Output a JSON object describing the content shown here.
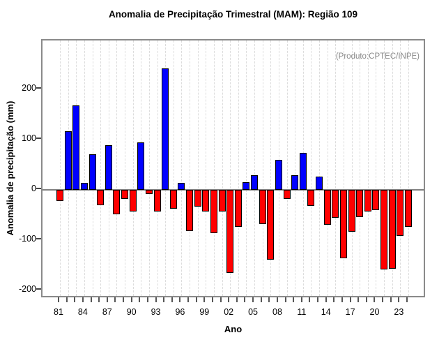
{
  "chart_data": {
    "type": "bar",
    "title": "Anomalia de Precipitação Trimestral (MAM): Região 109",
    "annotation": "(Produto:CPTEC/INPE)",
    "xlabel": "Ano",
    "ylabel": "Anomalia de precipitação (mm)",
    "ylim": [
      -217,
      297
    ],
    "yticks": [
      200,
      100,
      0,
      -100,
      -200
    ],
    "grid": "vertical-dashed",
    "legend": "none",
    "xtick_labels_visible": [
      "81",
      "84",
      "87",
      "90",
      "93",
      "96",
      "99",
      "02",
      "05",
      "08",
      "11",
      "14",
      "17",
      "20",
      "23"
    ],
    "xtick_label_every": 3,
    "x": [
      1981,
      1982,
      1983,
      1984,
      1985,
      1986,
      1987,
      1988,
      1989,
      1990,
      1991,
      1992,
      1993,
      1994,
      1995,
      1996,
      1997,
      1998,
      1999,
      2000,
      2001,
      2002,
      2003,
      2004,
      2005,
      2006,
      2007,
      2008,
      2009,
      2010,
      2011,
      2012,
      2013,
      2014,
      2015,
      2016,
      2017,
      2018,
      2019,
      2020,
      2021,
      2022,
      2023,
      2024
    ],
    "values": [
      -23,
      116,
      168,
      14,
      71,
      -31,
      89,
      -49,
      -19,
      -44,
      94,
      -9,
      -44,
      242,
      -38,
      14,
      -82,
      -33,
      -43,
      -86,
      -43,
      -165,
      -74,
      15,
      29,
      -68,
      -139,
      59,
      -18,
      29,
      73,
      -32,
      26,
      -70,
      -56,
      -136,
      -84,
      -54,
      -44,
      -41,
      -158,
      -157,
      -92,
      -74
    ],
    "colors": {
      "positive": "#0000ff",
      "negative": "#ff0000",
      "bar_border": "#000000",
      "zero_line": "#808080",
      "frame": "#8a8a8a",
      "gridline": "#dcdcdc",
      "annotation_text": "#8a8a8a",
      "text": "#000000"
    }
  }
}
